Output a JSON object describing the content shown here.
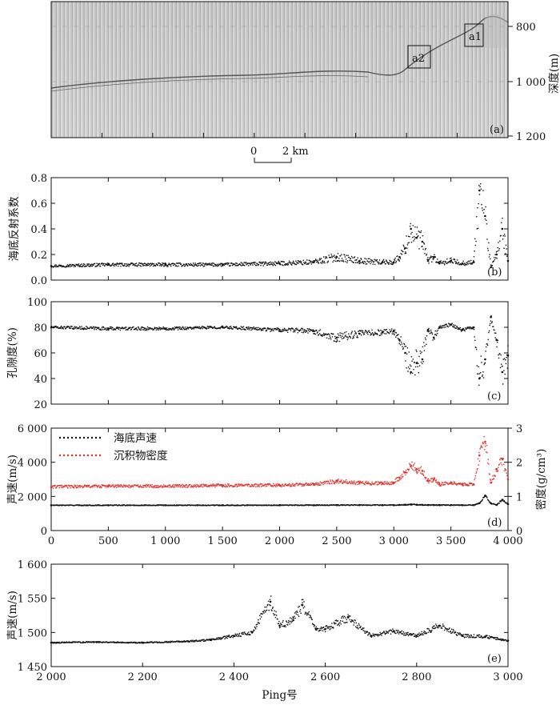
{
  "figure": {
    "panel_a": {
      "depth_axis_label": "深度(m)",
      "depth_ticks": [
        "800",
        "1 000",
        "1 200"
      ],
      "panel_label": "(a)",
      "box_labels": [
        "a1",
        "a2"
      ],
      "scale_bar": {
        "zero": "0",
        "end": "2 km"
      }
    }
  },
  "chart_data": [
    {
      "id": "b",
      "type": "scatter",
      "panel_label": "(b)",
      "ylabel": "海底反射系数",
      "xlabel": "",
      "xlim": [
        0,
        4000
      ],
      "ylim": [
        0,
        0.8
      ],
      "yticks": [
        "0.0",
        "0.2",
        "0.4",
        "0.6",
        "0.8"
      ],
      "series": [
        {
          "color": "#111111",
          "x": [
            0,
            500,
            1000,
            1500,
            2000,
            2300,
            2500,
            2700,
            2900,
            3000,
            3050,
            3100,
            3150,
            3200,
            3250,
            3300,
            3350,
            3400,
            3500,
            3600,
            3700,
            3750,
            3800,
            3850,
            3900,
            3950,
            4000
          ],
          "y": [
            0.11,
            0.12,
            0.12,
            0.12,
            0.13,
            0.14,
            0.18,
            0.15,
            0.14,
            0.14,
            0.18,
            0.25,
            0.4,
            0.33,
            0.3,
            0.15,
            0.18,
            0.13,
            0.15,
            0.13,
            0.14,
            0.7,
            0.5,
            0.1,
            0.2,
            0.4,
            0.15
          ]
        }
      ]
    },
    {
      "id": "c",
      "type": "scatter",
      "panel_label": "(c)",
      "ylabel": "孔隙度(%)",
      "xlabel": "",
      "xlim": [
        0,
        4000
      ],
      "ylim": [
        20,
        100
      ],
      "yticks": [
        "20",
        "40",
        "60",
        "80",
        "100"
      ],
      "series": [
        {
          "color": "#111111",
          "x": [
            0,
            500,
            1000,
            1500,
            2000,
            2300,
            2500,
            2700,
            2900,
            3000,
            3050,
            3100,
            3150,
            3200,
            3250,
            3300,
            3350,
            3400,
            3500,
            3600,
            3700,
            3750,
            3800,
            3850,
            3900,
            3950,
            4000
          ],
          "y": [
            80,
            79,
            79,
            80,
            78,
            77,
            72,
            75,
            76,
            77,
            70,
            60,
            45,
            52,
            55,
            78,
            72,
            80,
            82,
            78,
            80,
            40,
            55,
            88,
            70,
            45,
            58
          ]
        }
      ]
    },
    {
      "id": "d",
      "type": "scatter",
      "panel_label": "(d)",
      "ylabel": "声速(m/s)",
      "ylabel_right": "密度(g/cm³)",
      "xlabel": "",
      "xlim": [
        0,
        4000
      ],
      "ylim": [
        0,
        6000
      ],
      "ylim_right": [
        0,
        3
      ],
      "yticks": [
        "0",
        "2 000",
        "4 000",
        "6 000"
      ],
      "yticks_right": [
        "0",
        "1",
        "2",
        "3"
      ],
      "xticks": [
        "0",
        "500",
        "1 000",
        "1 500",
        "2 000",
        "2 500",
        "3 000",
        "3 500",
        "4 000"
      ],
      "legend": [
        "海底声速",
        "沉积物密度"
      ],
      "series": [
        {
          "name": "海底声速",
          "color": "#111111",
          "axis": "left",
          "x": [
            0,
            500,
            1000,
            1500,
            2000,
            2300,
            2500,
            2700,
            2900,
            3000,
            3050,
            3100,
            3150,
            3200,
            3250,
            3300,
            3350,
            3400,
            3500,
            3600,
            3700,
            3750,
            3800,
            3850,
            3900,
            3950,
            4000
          ],
          "y": [
            1480,
            1480,
            1482,
            1482,
            1484,
            1485,
            1490,
            1492,
            1490,
            1490,
            1500,
            1510,
            1530,
            1515,
            1505,
            1495,
            1495,
            1490,
            1492,
            1488,
            1488,
            1600,
            2050,
            1600,
            1500,
            1800,
            1550
          ]
        },
        {
          "name": "沉积物密度",
          "color": "#e0302a",
          "axis": "right",
          "x": [
            0,
            500,
            1000,
            1500,
            2000,
            2300,
            2500,
            2700,
            2900,
            3000,
            3050,
            3100,
            3150,
            3200,
            3250,
            3300,
            3350,
            3400,
            3500,
            3600,
            3700,
            3750,
            3800,
            3850,
            3900,
            3950,
            4000
          ],
          "y": [
            1.28,
            1.3,
            1.3,
            1.32,
            1.33,
            1.35,
            1.45,
            1.4,
            1.38,
            1.4,
            1.55,
            1.7,
            1.9,
            1.8,
            1.75,
            1.45,
            1.5,
            1.35,
            1.4,
            1.35,
            1.35,
            2.2,
            2.6,
            1.4,
            1.8,
            2.1,
            1.5
          ]
        }
      ]
    },
    {
      "id": "e",
      "type": "scatter",
      "panel_label": "(e)",
      "ylabel": "声速(m/s)",
      "xlabel": "Ping号",
      "xlim": [
        2000,
        3000
      ],
      "ylim": [
        1450,
        1600
      ],
      "yticks": [
        "1 450",
        "1 500",
        "1 550",
        "1 600"
      ],
      "xticks": [
        "2 000",
        "2 200",
        "2 400",
        "2 600",
        "2 800",
        "3 000"
      ],
      "series": [
        {
          "color": "#111111",
          "x": [
            2000,
            2100,
            2200,
            2300,
            2350,
            2400,
            2440,
            2480,
            2500,
            2530,
            2550,
            2580,
            2600,
            2650,
            2700,
            2750,
            2800,
            2850,
            2900,
            2950,
            3000
          ],
          "y": [
            1485,
            1486,
            1485,
            1487,
            1489,
            1495,
            1500,
            1545,
            1510,
            1518,
            1540,
            1505,
            1505,
            1522,
            1495,
            1502,
            1495,
            1510,
            1495,
            1494,
            1488
          ]
        }
      ]
    }
  ]
}
